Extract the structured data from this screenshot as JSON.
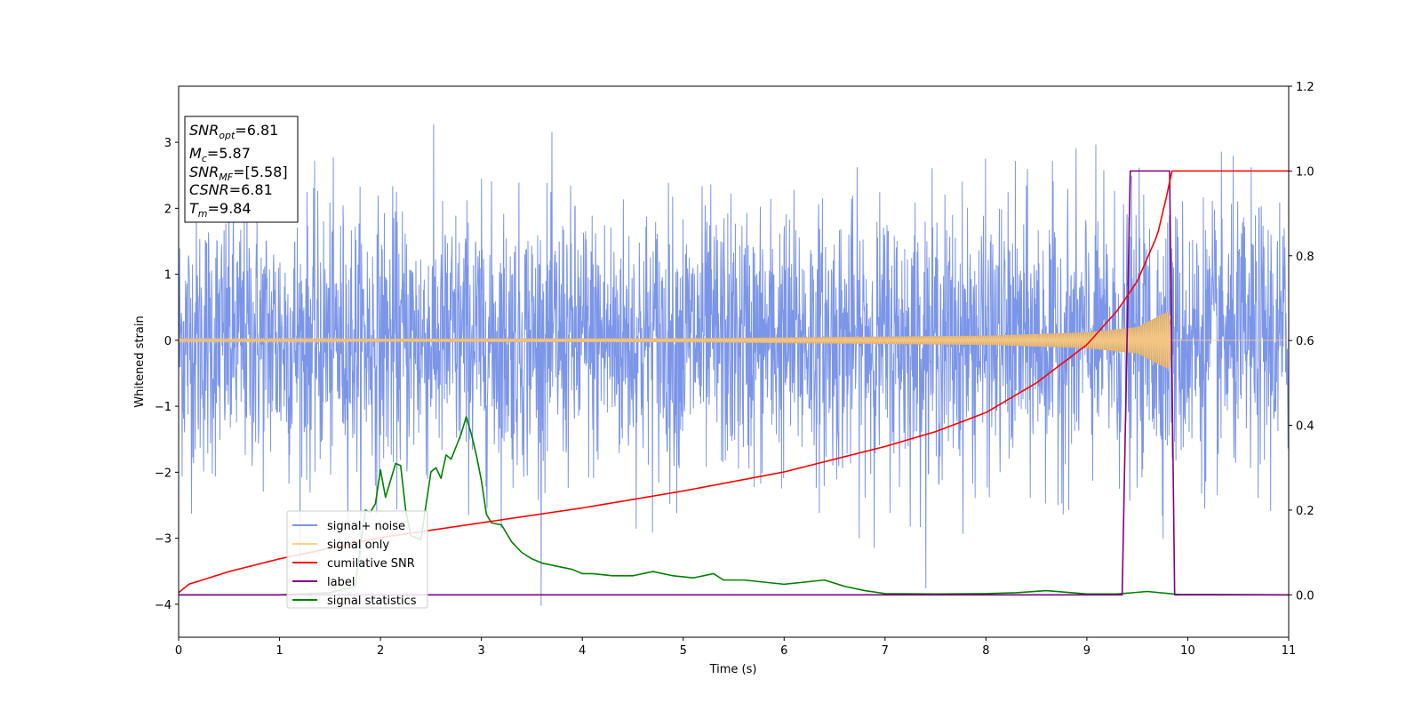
{
  "chart_data": {
    "type": "line",
    "xlabel": "Time (s)",
    "ylabel": "Whitened strain",
    "xlim": [
      0,
      11
    ],
    "ylim_left": [
      -4.5,
      3.85
    ],
    "ylim_right": [
      -0.1,
      1.2
    ],
    "x_ticks": [
      "0",
      "1",
      "2",
      "3",
      "4",
      "5",
      "6",
      "7",
      "8",
      "9",
      "10",
      "11"
    ],
    "y_ticks_left": [
      "3",
      "2",
      "1",
      "0",
      "−1",
      "−2",
      "−3",
      "−4"
    ],
    "y_ticks_right": [
      "1.2",
      "1.0",
      "0.8",
      "0.6",
      "0.4",
      "0.2",
      "0.0"
    ],
    "grid": false,
    "legend_position": "lower-left",
    "info_box": {
      "snr_opt": {
        "base": "SNR",
        "sub": "opt",
        "value": "=6.81"
      },
      "mc": {
        "base": "M",
        "sub": "c",
        "value": "=5.87"
      },
      "snr_mf": {
        "base": "SNR",
        "sub": "MF",
        "value": "=[5.58]"
      },
      "csnr": {
        "base": "CSNR",
        "sub": "",
        "value": "=6.81"
      },
      "tm": {
        "base": "T",
        "sub": "m",
        "value": "=9.84"
      }
    },
    "series": [
      {
        "name": "signal+ noise",
        "color": "#7b95e8",
        "axis": "left",
        "description_values": {
          "typical_amplitude_sigma": 1.0,
          "max": 3.5,
          "min": -4.15
        }
      },
      {
        "name": "signal only",
        "color": "#ffcf86",
        "axis": "left",
        "envelope": {
          "t": [
            0,
            5,
            8,
            9,
            9.5,
            9.82,
            9.84,
            11
          ],
          "amp": [
            0.02,
            0.03,
            0.07,
            0.12,
            0.2,
            0.45,
            0.0,
            0.0
          ]
        }
      },
      {
        "name": "cumilative SNR",
        "color": "#ff0000",
        "axis": "right",
        "x": [
          0,
          0.1,
          0.5,
          1,
          2,
          3,
          4,
          5,
          6,
          7,
          7.5,
          8,
          8.5,
          9,
          9.3,
          9.5,
          9.7,
          9.8,
          9.84,
          11
        ],
        "y": [
          0.005,
          0.025,
          0.055,
          0.085,
          0.135,
          0.17,
          0.205,
          0.245,
          0.29,
          0.35,
          0.385,
          0.43,
          0.5,
          0.59,
          0.67,
          0.74,
          0.85,
          0.95,
          1.0,
          1.0
        ]
      },
      {
        "name": "label",
        "color": "#800080",
        "axis": "right",
        "x": [
          0,
          9.35,
          9.43,
          9.82,
          9.87,
          11
        ],
        "y": [
          0,
          0,
          1,
          1,
          0,
          0
        ]
      },
      {
        "name": "signal statistics",
        "color": "#008000",
        "axis": "right",
        "x": [
          0,
          1.0,
          1.5,
          1.75,
          1.85,
          1.9,
          1.95,
          2.0,
          2.05,
          2.1,
          2.15,
          2.2,
          2.25,
          2.3,
          2.4,
          2.45,
          2.5,
          2.55,
          2.6,
          2.65,
          2.7,
          2.75,
          2.8,
          2.85,
          2.9,
          2.95,
          3.0,
          3.05,
          3.1,
          3.2,
          3.3,
          3.4,
          3.5,
          3.6,
          3.7,
          3.8,
          3.9,
          4.0,
          4.1,
          4.3,
          4.5,
          4.7,
          4.9,
          5.1,
          5.3,
          5.4,
          5.6,
          5.8,
          6.0,
          6.2,
          6.4,
          6.6,
          6.8,
          7.0,
          7.5,
          8.0,
          8.3,
          8.6,
          9.0,
          9.3,
          9.6,
          9.9,
          11
        ],
        "y": [
          0.0,
          0.0,
          0.005,
          0.02,
          0.2,
          0.195,
          0.215,
          0.295,
          0.23,
          0.27,
          0.31,
          0.305,
          0.2,
          0.14,
          0.13,
          0.21,
          0.29,
          0.3,
          0.275,
          0.33,
          0.32,
          0.35,
          0.38,
          0.42,
          0.38,
          0.33,
          0.27,
          0.19,
          0.17,
          0.165,
          0.125,
          0.1,
          0.085,
          0.075,
          0.07,
          0.065,
          0.06,
          0.05,
          0.05,
          0.045,
          0.045,
          0.055,
          0.045,
          0.04,
          0.05,
          0.035,
          0.035,
          0.03,
          0.025,
          0.03,
          0.035,
          0.02,
          0.01,
          0.003,
          0.002,
          0.003,
          0.005,
          0.01,
          0.002,
          0.002,
          0.008,
          0.001,
          0.0
        ]
      }
    ]
  }
}
